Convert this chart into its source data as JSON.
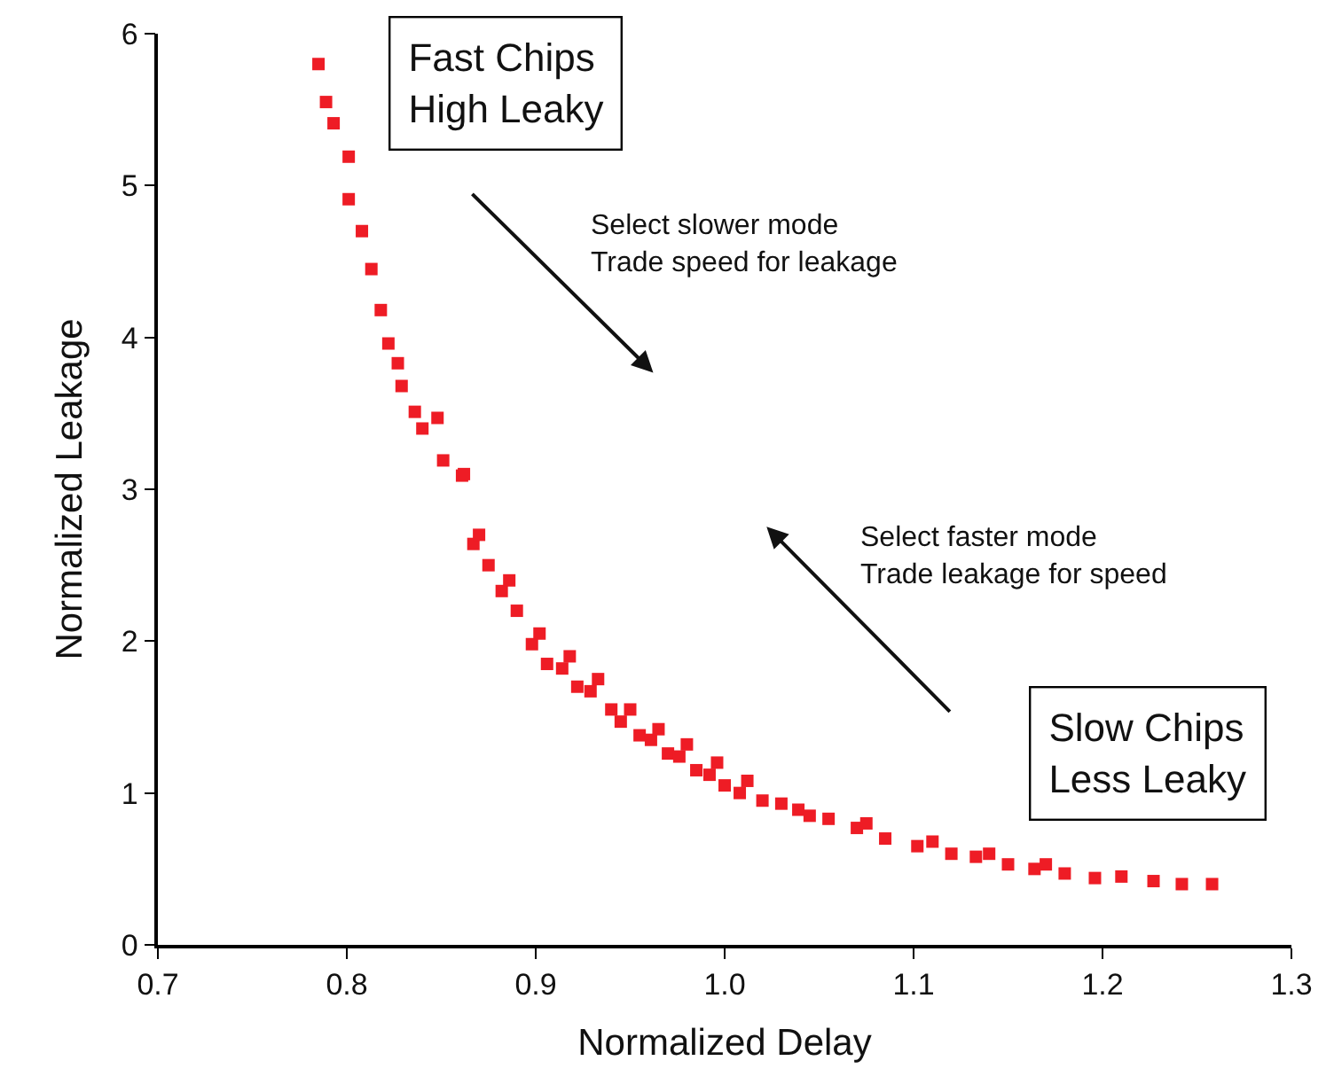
{
  "chart_data": {
    "type": "scatter",
    "xlabel": "Normalized Delay",
    "ylabel": "Normalized Leakage",
    "x": [
      0.785,
      0.789,
      0.793,
      0.801,
      0.801,
      0.808,
      0.813,
      0.818,
      0.822,
      0.827,
      0.829,
      0.836,
      0.84,
      0.848,
      0.851,
      0.861,
      0.862,
      0.867,
      0.87,
      0.875,
      0.882,
      0.886,
      0.89,
      0.898,
      0.902,
      0.906,
      0.914,
      0.918,
      0.922,
      0.929,
      0.933,
      0.94,
      0.945,
      0.95,
      0.955,
      0.961,
      0.965,
      0.97,
      0.976,
      0.98,
      0.985,
      0.992,
      0.996,
      1.0,
      1.008,
      1.012,
      1.02,
      1.03,
      1.039,
      1.045,
      1.055,
      1.07,
      1.075,
      1.085,
      1.102,
      1.11,
      1.12,
      1.133,
      1.14,
      1.15,
      1.164,
      1.17,
      1.18,
      1.196,
      1.21,
      1.227,
      1.242,
      1.258
    ],
    "series": [
      {
        "color": "#ee1c25",
        "values": [
          5.8,
          5.55,
          5.41,
          5.19,
          4.91,
          4.7,
          4.45,
          4.18,
          3.96,
          3.83,
          3.68,
          3.51,
          3.4,
          3.47,
          3.19,
          3.09,
          3.1,
          2.64,
          2.7,
          2.5,
          2.33,
          2.4,
          2.2,
          1.98,
          2.05,
          1.85,
          1.82,
          1.9,
          1.7,
          1.67,
          1.75,
          1.55,
          1.47,
          1.55,
          1.38,
          1.35,
          1.42,
          1.26,
          1.24,
          1.32,
          1.15,
          1.12,
          1.2,
          1.05,
          1.0,
          1.08,
          0.95,
          0.93,
          0.89,
          0.85,
          0.83,
          0.77,
          0.8,
          0.7,
          0.65,
          0.68,
          0.6,
          0.58,
          0.6,
          0.53,
          0.5,
          0.53,
          0.47,
          0.44,
          0.45,
          0.42,
          0.4,
          0.4
        ]
      }
    ],
    "marker": "square",
    "grid": false,
    "xlim": [
      0.7,
      1.3
    ],
    "xticks": [
      {
        "value": 0.7,
        "label": "0.7"
      },
      {
        "value": 0.8,
        "label": "0.8"
      },
      {
        "value": 0.9,
        "label": "0.9"
      },
      {
        "value": 1.0,
        "label": "1.0"
      },
      {
        "value": 1.1,
        "label": "1.1"
      },
      {
        "value": 1.2,
        "label": "1.2"
      },
      {
        "value": 1.3,
        "label": "1.3"
      }
    ],
    "ylim": [
      0,
      6
    ],
    "yticks": [
      0,
      1,
      2,
      3,
      4,
      5,
      6
    ],
    "annotations": [
      "Fast Chips\nHigh Leaky",
      "Select slower mode\nTrade speed for leakage",
      "Select faster mode\nTrade leakage for speed",
      "Slow Chips\nLess Leaky"
    ]
  }
}
